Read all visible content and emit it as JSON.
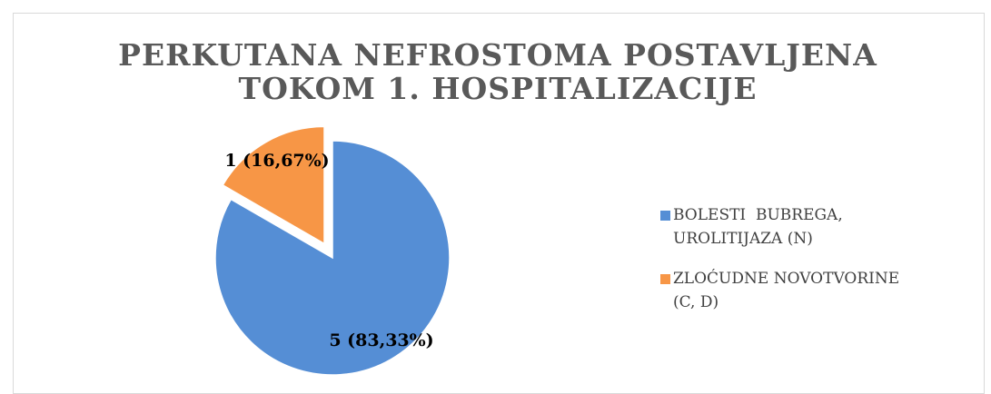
{
  "chart_data": {
    "type": "pie",
    "title": "PERKUTANA NEFROSTOMA POSTAVLJENA TOKOM 1. HOSPITALIZACIJE",
    "categories": [
      "BOLESTI  BUBREGA, UROLITIJAZA (N)",
      "ZLOĆUDNE NOVOTVORINE (C, D)"
    ],
    "values": [
      5,
      1
    ],
    "value_labels": [
      "5 (83,33%)",
      "1 (16,67%)"
    ],
    "colors": [
      "#558ed5",
      "#f79646"
    ],
    "legend": "right"
  }
}
